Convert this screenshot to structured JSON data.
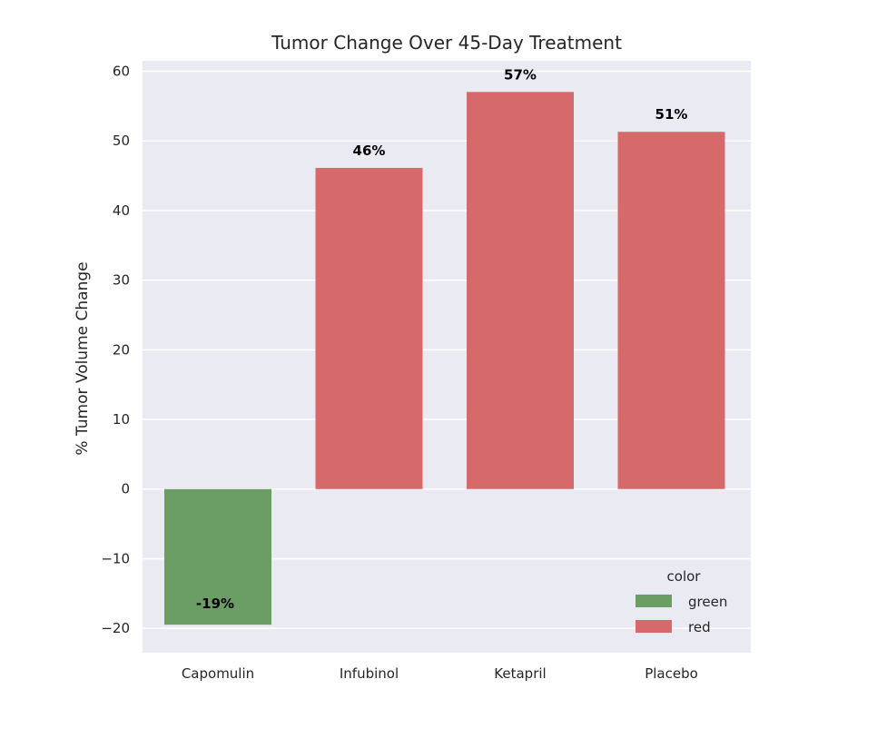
{
  "chart_data": {
    "type": "bar",
    "title": "Tumor Change Over 45-Day Treatment",
    "xlabel": "",
    "ylabel": "% Tumor Volume Change",
    "categories": [
      "Capomulin",
      "Infubinol",
      "Ketapril",
      "Placebo"
    ],
    "values": [
      -19.48,
      46.12,
      57.03,
      51.3
    ],
    "value_labels": [
      "-19%",
      "46%",
      "57%",
      "51%"
    ],
    "bar_colors": [
      "green",
      "red",
      "red",
      "red"
    ],
    "ylim": [
      -23.5,
      61.5
    ],
    "yticks": [
      60,
      50,
      40,
      30,
      20,
      10,
      0,
      -10,
      -20
    ],
    "ytick_labels": [
      "60",
      "50",
      "40",
      "30",
      "20",
      "10",
      "0",
      "−10",
      "−20"
    ],
    "grid": true,
    "legend": {
      "title": "color",
      "placement": "lower right",
      "entries": [
        {
          "label": "green",
          "color": "#6a9e64"
        },
        {
          "label": "red",
          "color": "#d66a6a"
        }
      ]
    },
    "colors": {
      "green": "#6a9e64",
      "red": "#d66a6a",
      "background": "#eaeaf2",
      "grid": "#ffffff"
    }
  }
}
